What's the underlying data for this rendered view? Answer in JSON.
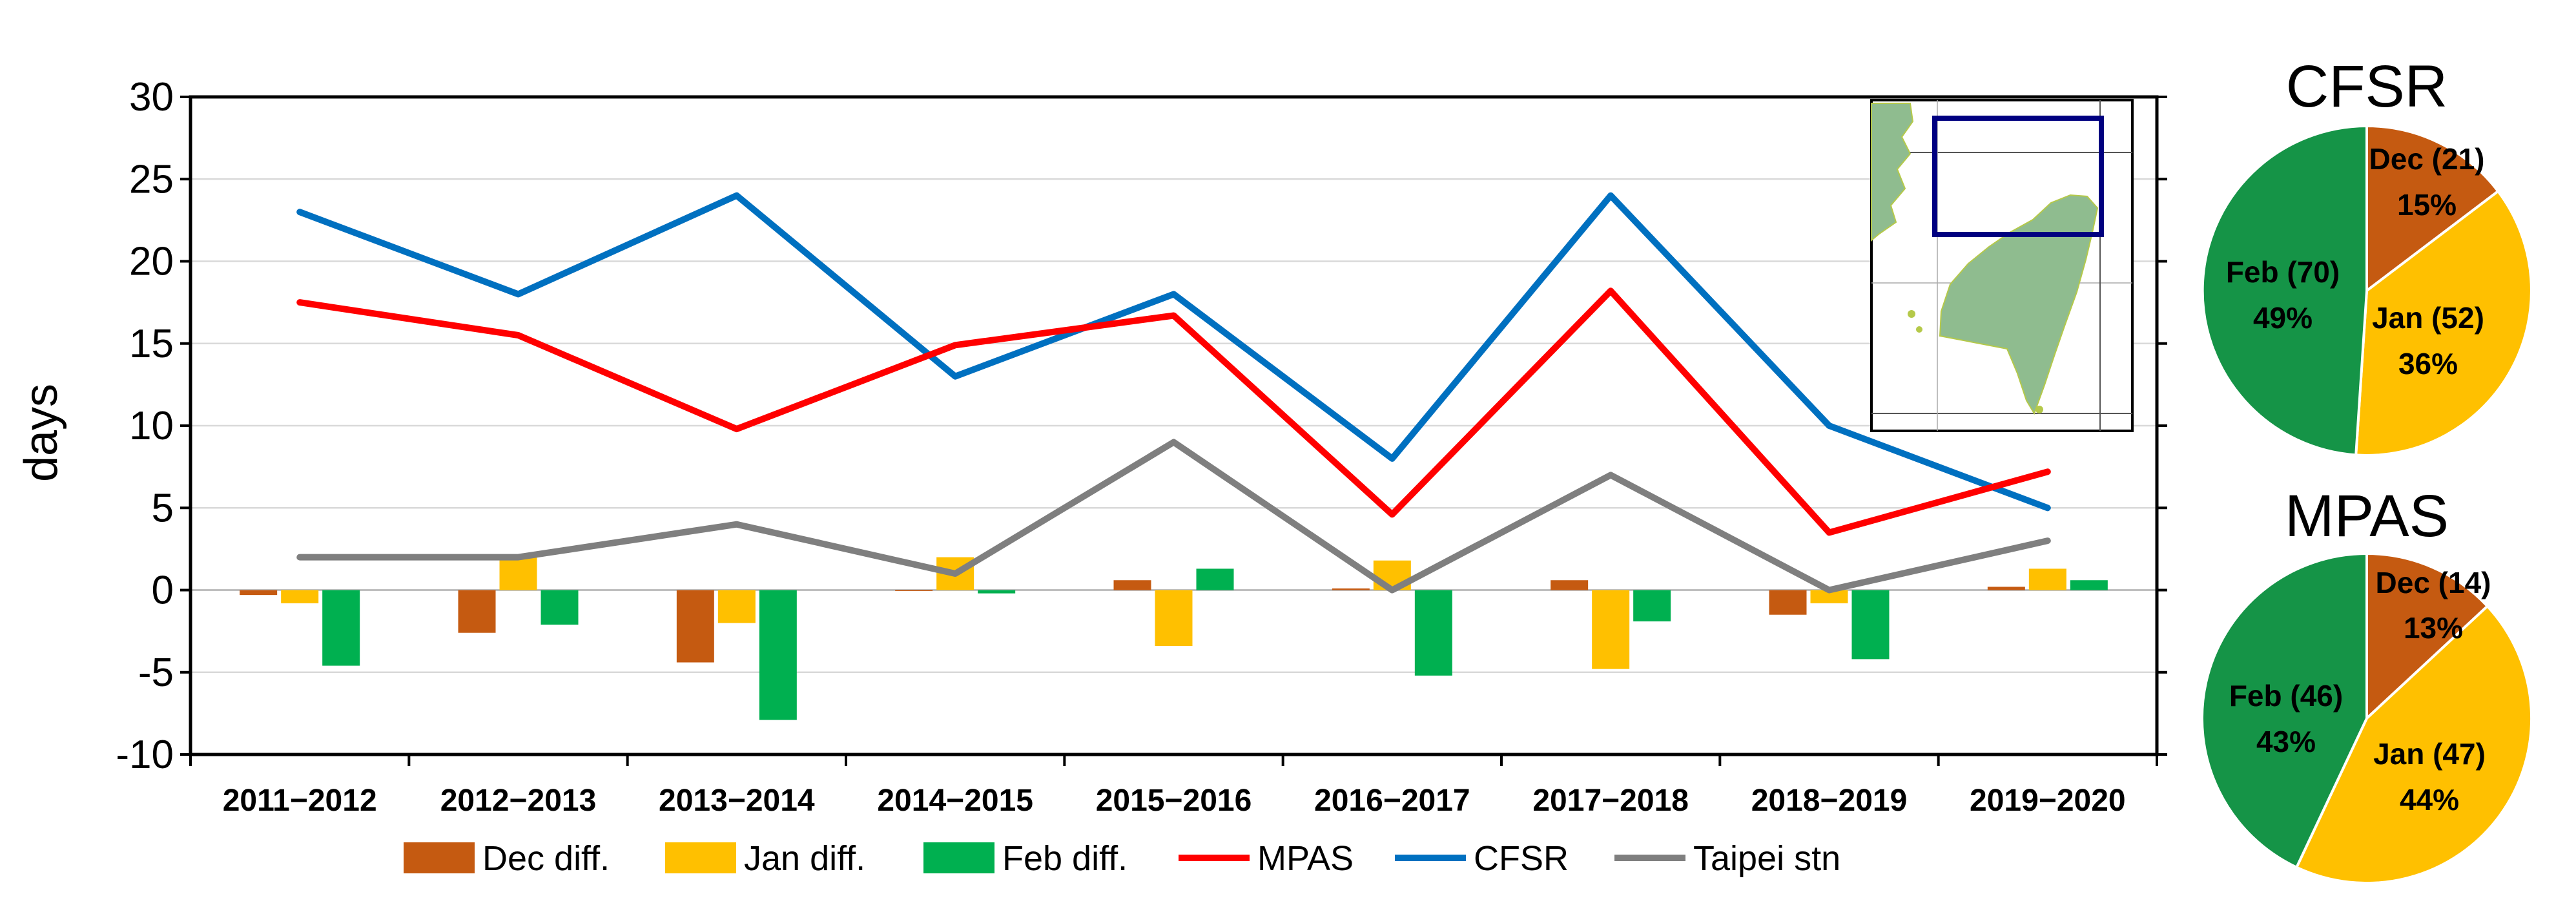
{
  "chart_data": [
    {
      "type": "bar+line",
      "ylabel": "days",
      "ylim": [
        -10,
        30
      ],
      "yticks": [
        -10,
        -5,
        0,
        5,
        10,
        15,
        20,
        25,
        30
      ],
      "categories": [
        "2011−2012",
        "2012−2013",
        "2013−2014",
        "2014−2015",
        "2015−2016",
        "2016−2017",
        "2017−2018",
        "2018−2019",
        "2019−2020"
      ],
      "bar_series": [
        {
          "name": "Dec diff.",
          "color": "#c55a11",
          "values": [
            -0.3,
            -2.6,
            -4.4,
            0,
            0.6,
            0.1,
            0.6,
            -1.5,
            0.2
          ]
        },
        {
          "name": "Jan diff.",
          "color": "#ffc000",
          "values": [
            -0.8,
            2,
            -2,
            2,
            -3.4,
            1.8,
            -4.8,
            -0.8,
            1.3
          ]
        },
        {
          "name": "Feb diff.",
          "color": "#00b050",
          "values": [
            -4.6,
            -2.1,
            -7.9,
            -0.2,
            1.3,
            -5.2,
            -1.9,
            -4.2,
            0.6
          ]
        }
      ],
      "line_series": [
        {
          "name": "MPAS",
          "color": "#ff0000",
          "values": [
            17.5,
            15.5,
            9.8,
            14.9,
            16.7,
            4.6,
            18.2,
            3.5,
            7.2
          ]
        },
        {
          "name": "CFSR",
          "color": "#0070c0",
          "values": [
            23,
            18,
            24,
            13,
            18,
            8,
            24,
            10,
            5
          ]
        },
        {
          "name": "Taipei stn",
          "color": "#7f7f7f",
          "values": [
            2,
            2,
            4,
            1,
            9,
            0,
            7,
            0,
            3
          ]
        }
      ],
      "legend_position": "bottom",
      "grid": true,
      "inset": {
        "type": "map",
        "land_color": "#8fbc8f",
        "box_color": "#000080"
      }
    },
    {
      "type": "pie",
      "title": "CFSR",
      "slices": [
        {
          "name": "Dec",
          "value": 21,
          "percent": 15,
          "label": "Dec (21)",
          "pct_label": "15%",
          "color": "#c55a11"
        },
        {
          "name": "Jan",
          "value": 52,
          "percent": 36,
          "label": "Jan (52)",
          "pct_label": "36%",
          "color": "#ffc000"
        },
        {
          "name": "Feb",
          "value": 70,
          "percent": 49,
          "label": "Feb (70)",
          "pct_label": "49%",
          "color": "#159447"
        }
      ]
    },
    {
      "type": "pie",
      "title": "MPAS",
      "slices": [
        {
          "name": "Dec",
          "value": 14,
          "percent": 13,
          "label": "Dec (14)",
          "pct_label": "13%",
          "color": "#c55a11"
        },
        {
          "name": "Jan",
          "value": 47,
          "percent": 44,
          "label": "Jan (47)",
          "pct_label": "44%",
          "color": "#ffc000"
        },
        {
          "name": "Feb",
          "value": 46,
          "percent": 43,
          "label": "Feb (46)",
          "pct_label": "43%",
          "color": "#159447"
        }
      ]
    }
  ]
}
